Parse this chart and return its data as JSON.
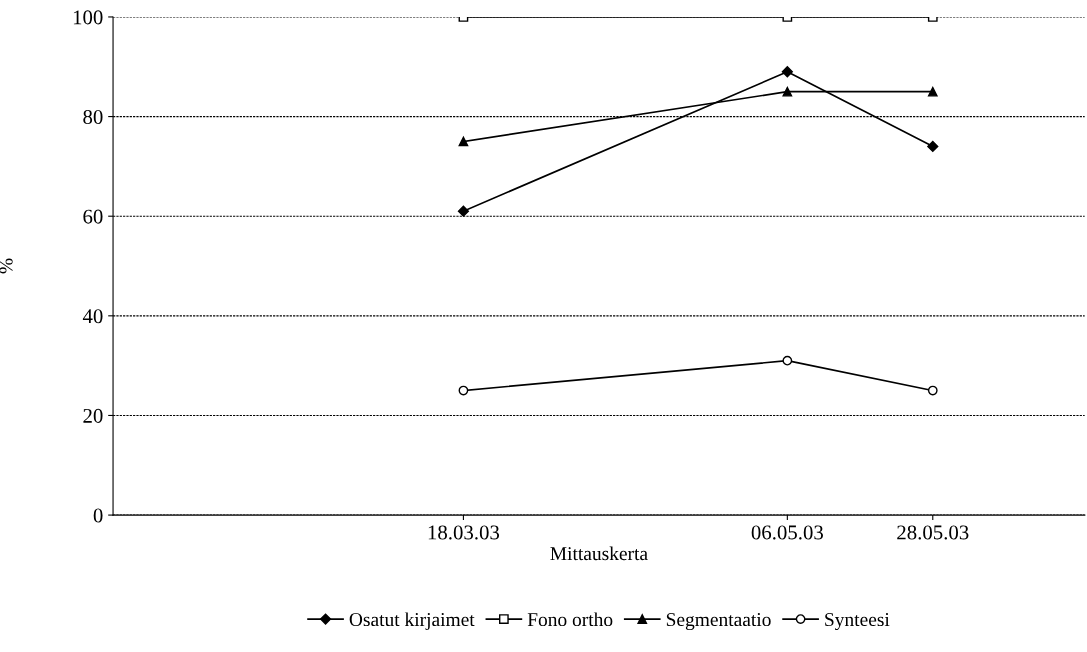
{
  "chart_data": {
    "type": "line",
    "xlabel": "Mittauskerta",
    "ylabel": "%",
    "x": [
      "2003-03-18",
      "2003-05-06",
      "2003-05-28"
    ],
    "xlim": [
      "2003-01-24",
      "2003-06-20"
    ],
    "xticks": [
      {
        "value": "2003-03-18",
        "label": "18.03.03"
      },
      {
        "value": "2003-05-06",
        "label": "06.05.03"
      },
      {
        "value": "2003-05-28",
        "label": "28.05.03"
      }
    ],
    "ylim": [
      0,
      100
    ],
    "yticks": [
      0,
      20,
      40,
      60,
      80,
      100
    ],
    "grid": "y",
    "legend": "bottom",
    "line_style": "solid",
    "series": [
      {
        "name": "Osatut kirjaimet",
        "color": "#000000",
        "marker": "diamond",
        "values": [
          61,
          89,
          74
        ]
      },
      {
        "name": "Fono ortho",
        "color": "#000000",
        "marker": "square",
        "values": [
          100,
          100,
          100
        ]
      },
      {
        "name": "Segmentaatio",
        "color": "#000000",
        "marker": "triangle",
        "values": [
          75,
          85,
          85
        ]
      },
      {
        "name": "Synteesi",
        "color": "#000000",
        "marker": "circle",
        "values": [
          25,
          31,
          25
        ]
      }
    ]
  }
}
